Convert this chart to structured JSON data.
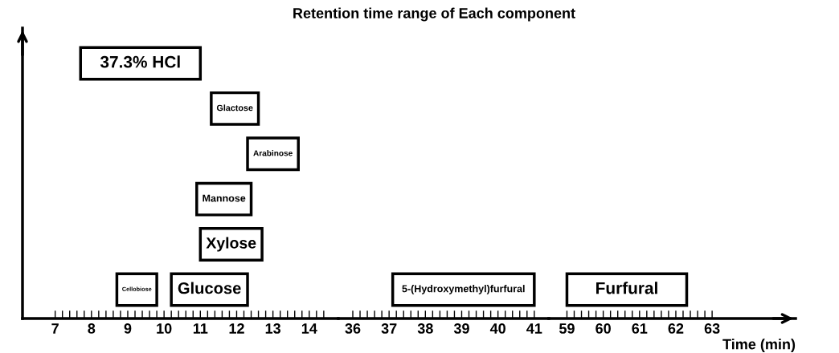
{
  "chart_data": [
    {
      "type": "bar",
      "orientation": "horizontal",
      "categories": [
        null,
        null,
        null,
        null,
        null,
        null
      ],
      "xlim": [
        6.1,
        14.8
      ],
      "tick_labels": "x",
      "xticks": [
        7,
        {
          "value": 7.2,
          "label": null
        },
        {
          "value": 7.4,
          "label": null
        },
        {
          "value": 7.6,
          "label": null
        },
        {
          "value": 7.8,
          "label": null
        },
        8,
        {
          "value": 8.2,
          "label": null
        },
        {
          "value": 8.4,
          "label": null
        },
        {
          "value": 8.6,
          "label": null
        },
        {
          "value": 8.8,
          "label": null
        },
        9,
        {
          "value": 9.2,
          "label": null
        },
        {
          "value": 9.4,
          "label": null
        },
        {
          "value": 9.6,
          "label": null
        },
        {
          "value": 9.8,
          "label": null
        },
        10,
        {
          "value": 10.2,
          "label": null
        },
        {
          "value": 10.4,
          "label": null
        },
        {
          "value": 10.6,
          "label": null
        },
        {
          "value": 10.8,
          "label": null
        },
        11,
        {
          "value": 11.2,
          "label": null
        },
        {
          "value": 11.4,
          "label": null
        },
        {
          "value": 11.6,
          "label": null
        },
        {
          "value": 11.8,
          "label": null
        },
        12,
        {
          "value": 12.2,
          "label": null
        },
        {
          "value": 12.4,
          "label": null
        },
        {
          "value": 12.6,
          "label": null
        },
        {
          "value": 12.8,
          "label": null
        },
        13,
        {
          "value": 13.2,
          "label": null
        },
        {
          "value": 13.4,
          "label": null
        },
        {
          "value": 13.6,
          "label": null
        },
        {
          "value": 13.8,
          "label": null
        },
        14,
        {
          "value": 14.2,
          "label": null
        },
        {
          "value": 14.4,
          "label": null
        }
      ],
      "series": [
        {
          "name": "37.3% HCl",
          "color": "#000000",
          "base": [
            7.7,
            null,
            null,
            null,
            null,
            null
          ],
          "values": [
            3.3,
            null,
            null,
            null,
            null,
            null
          ]
        },
        {
          "name": "Glactose",
          "color": "#000000",
          "base": [
            null,
            11.3,
            null,
            null,
            null,
            null
          ],
          "values": [
            null,
            1.3,
            null,
            null,
            null,
            null
          ]
        },
        {
          "name": "Arabinose",
          "color": "#000000",
          "base": [
            null,
            null,
            12.3,
            null,
            null,
            null
          ],
          "values": [
            null,
            null,
            1.4,
            null,
            null,
            null
          ]
        },
        {
          "name": "Mannose",
          "color": "#000000",
          "base": [
            null,
            null,
            null,
            10.9,
            null,
            null
          ],
          "values": [
            null,
            null,
            null,
            1.5,
            null,
            null
          ]
        },
        {
          "name": "Xylose",
          "color": "#000000",
          "base": [
            null,
            null,
            null,
            null,
            11.0,
            null
          ],
          "values": [
            null,
            null,
            null,
            null,
            1.7,
            null
          ]
        },
        {
          "name": "Cellobiose",
          "color": "#000000",
          "base": [
            null,
            null,
            null,
            null,
            null,
            8.7
          ],
          "values": [
            null,
            null,
            null,
            null,
            null,
            1.1
          ]
        },
        {
          "name": "Glucose",
          "color": "#000000",
          "base": [
            null,
            null,
            null,
            null,
            null,
            10.2
          ],
          "values": [
            null,
            null,
            null,
            null,
            null,
            2.1
          ]
        }
      ]
    },
    {
      "type": "bar",
      "orientation": "horizontal",
      "title": "Retention time range of Each component",
      "categories": [
        null,
        null,
        null,
        null,
        null,
        null
      ],
      "xlim": [
        35.6,
        41.4
      ],
      "xticks": [
        36,
        {
          "value": 36.2,
          "label": null
        },
        {
          "value": 36.4,
          "label": null
        },
        {
          "value": 36.6,
          "label": null
        },
        {
          "value": 36.8,
          "label": null
        },
        37,
        {
          "value": 37.2,
          "label": null
        },
        {
          "value": 37.4,
          "label": null
        },
        {
          "value": 37.6,
          "label": null
        },
        {
          "value": 37.8,
          "label": null
        },
        38,
        {
          "value": 38.2,
          "label": null
        },
        {
          "value": 38.4,
          "label": null
        },
        {
          "value": 38.6,
          "label": null
        },
        {
          "value": 38.8,
          "label": null
        },
        39,
        {
          "value": 39.2,
          "label": null
        },
        {
          "value": 39.4,
          "label": null
        },
        {
          "value": 39.6,
          "label": null
        },
        {
          "value": 39.8,
          "label": null
        },
        40,
        {
          "value": 40.2,
          "label": null
        },
        {
          "value": 40.4,
          "label": null
        },
        {
          "value": 40.6,
          "label": null
        },
        {
          "value": 40.8,
          "label": null
        },
        41
      ],
      "tick_labels": "x",
      "series": [
        {
          "name": "5-(Hydroxymethyl)furfural",
          "color": "#000000",
          "base": [
            null,
            null,
            null,
            null,
            null,
            37.1
          ],
          "values": [
            null,
            null,
            null,
            null,
            null,
            3.9
          ]
        }
      ]
    },
    {
      "type": "bar",
      "orientation": "horizontal",
      "xlabel": "Time (min)",
      "categories": [
        null,
        null,
        null,
        null,
        null,
        null
      ],
      "xlim": [
        58.5,
        65.3
      ],
      "xticks": [
        59,
        {
          "value": 59.2,
          "label": null
        },
        {
          "value": 59.4,
          "label": null
        },
        {
          "value": 59.6,
          "label": null
        },
        {
          "value": 59.8,
          "label": null
        },
        60,
        {
          "value": 60.2,
          "label": null
        },
        {
          "value": 60.4,
          "label": null
        },
        {
          "value": 60.6,
          "label": null
        },
        {
          "value": 60.8,
          "label": null
        },
        61,
        {
          "value": 61.2,
          "label": null
        },
        {
          "value": 61.4,
          "label": null
        },
        {
          "value": 61.6,
          "label": null
        },
        {
          "value": 61.8,
          "label": null
        },
        62,
        {
          "value": 62.2,
          "label": null
        },
        {
          "value": 62.4,
          "label": null
        },
        {
          "value": 62.6,
          "label": null
        },
        {
          "value": 62.8,
          "label": null
        },
        63
      ],
      "tick_labels": "x",
      "series": [
        {
          "name": "Furfural",
          "color": "#000000",
          "base": [
            null,
            null,
            null,
            null,
            null,
            59.0
          ],
          "values": [
            null,
            null,
            null,
            null,
            null,
            3.3
          ]
        }
      ]
    }
  ]
}
